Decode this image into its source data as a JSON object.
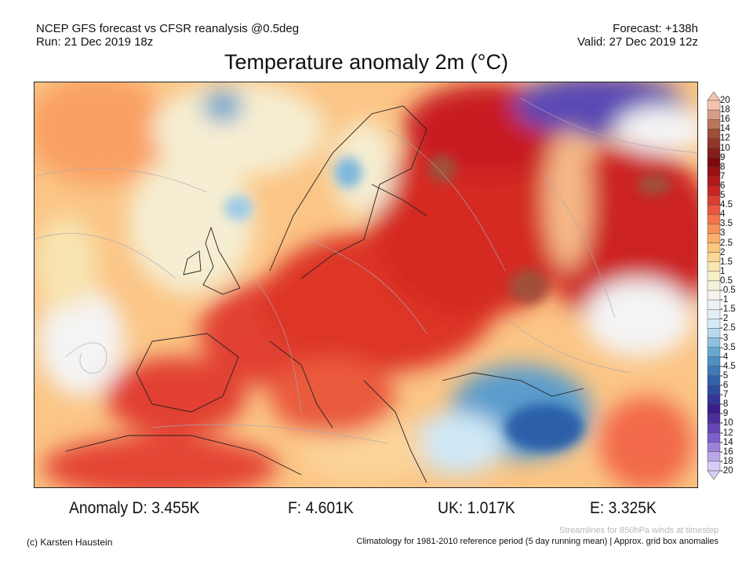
{
  "header": {
    "model": "NCEP GFS forecast vs CFSR reanalysis @0.5deg",
    "run": "Run: 21 Dec 2019 18z",
    "forecast": "Forecast: +138h",
    "valid": "Valid: 27 Dec 2019 12z",
    "title": "Temperature anomaly 2m (°C)"
  },
  "colorbar": {
    "labels": [
      "20",
      "18",
      "16",
      "14",
      "12",
      "10",
      "9",
      "8",
      "7",
      "6",
      "5",
      "4.5",
      "4",
      "3.5",
      "3",
      "2.5",
      "2",
      "1.5",
      "1",
      "0.5",
      "-0.5",
      "-1",
      "-1.5",
      "-2",
      "-2.5",
      "-3",
      "-3.5",
      "-4",
      "-4.5",
      "-5",
      "-6",
      "-7",
      "-8",
      "-9",
      "-10",
      "-12",
      "-14",
      "-16",
      "-18",
      "-20"
    ],
    "anchor_colors": [
      "#f3c4ad",
      "#a0503a",
      "#7a0a0a",
      "#c81e22",
      "#f26a48",
      "#fdc070",
      "#f8eec0",
      "#f4f4f4",
      "#cfe8f6",
      "#5aa0cc",
      "#2c5ea8",
      "#3a1a8a",
      "#8060cc",
      "#d6ccf6"
    ]
  },
  "anomalies": {
    "d": "Anomaly D: 3.455K",
    "f": "F: 4.601K",
    "uk": "UK: 1.017K",
    "e": "E: 3.325K"
  },
  "footer": {
    "credit": "(c) Karsten Haustein",
    "streamlines": "Streamlines for 850hPa winds at timestep",
    "climatology": "Climatology for 1981-2010 reference period (5 day running mean) | Approx. grid box anomalies"
  }
}
